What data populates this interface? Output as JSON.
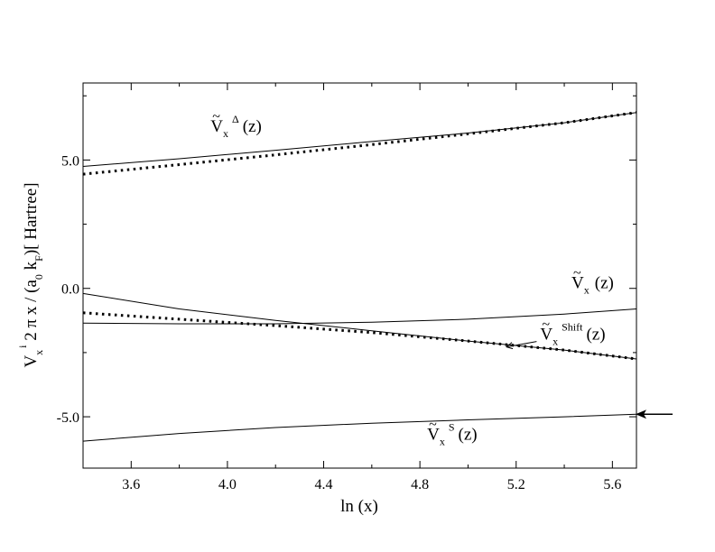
{
  "chart_data": {
    "type": "line",
    "xlabel": "ln (x)",
    "ylabel_parts": {
      "V": "V",
      "sub_x": "x",
      "sup_i": "i",
      "mid": "2 π x / (a",
      "sub_0": "0",
      "k": " k",
      "sub_F": "F",
      "tail": ")[ Hartree]"
    },
    "xlim": [
      3.4,
      5.7
    ],
    "ylim": [
      -7.0,
      8.0
    ],
    "xticks": [
      3.6,
      4.0,
      4.4,
      4.8,
      5.2,
      5.6
    ],
    "xtick_labels": [
      "3.6",
      "4.0",
      "4.4",
      "4.8",
      "5.2",
      "5.6"
    ],
    "yticks": [
      -5.0,
      0.0,
      5.0
    ],
    "ytick_labels": [
      "-5.0",
      "0.0",
      "5.0"
    ],
    "grid": false,
    "series": [
      {
        "id": "delta_solid",
        "style": "solid",
        "x": [
          3.4,
          3.8,
          4.2,
          4.6,
          5.0,
          5.4,
          5.7
        ],
        "y": [
          4.75,
          5.05,
          5.38,
          5.72,
          6.05,
          6.45,
          6.85
        ]
      },
      {
        "id": "delta_dotted",
        "style": "dotted",
        "x": [
          3.4,
          3.8,
          4.2,
          4.6,
          5.0,
          5.4,
          5.7
        ],
        "y": [
          4.45,
          4.82,
          5.2,
          5.6,
          6.02,
          6.45,
          6.85
        ]
      },
      {
        "id": "vx_total",
        "style": "solid",
        "x": [
          3.4,
          3.8,
          4.2,
          4.6,
          5.0,
          5.4,
          5.7
        ],
        "y": [
          -1.35,
          -1.38,
          -1.38,
          -1.32,
          -1.2,
          -1.0,
          -0.8
        ]
      },
      {
        "id": "vx_shift_solid",
        "style": "solid",
        "x": [
          3.4,
          3.8,
          4.2,
          4.6,
          5.0,
          5.4,
          5.7
        ],
        "y": [
          -0.2,
          -0.8,
          -1.25,
          -1.65,
          -2.05,
          -2.4,
          -2.75
        ]
      },
      {
        "id": "vx_shift_dotted",
        "style": "dotted",
        "x": [
          3.4,
          3.8,
          4.2,
          4.6,
          5.0,
          5.4,
          5.7
        ],
        "y": [
          -0.95,
          -1.2,
          -1.45,
          -1.72,
          -2.05,
          -2.4,
          -2.75
        ]
      },
      {
        "id": "vx_s",
        "style": "solid",
        "x": [
          3.4,
          3.8,
          4.2,
          4.6,
          5.0,
          5.4,
          5.7
        ],
        "y": [
          -5.95,
          -5.65,
          -5.42,
          -5.25,
          -5.12,
          -5.0,
          -4.9
        ]
      }
    ],
    "annotations": [
      {
        "id": "ann-delta",
        "tilde": "~",
        "base": "V",
        "sub": "x",
        "sup": "Δ",
        "tail": "(z)",
        "x": 3.93,
        "y": 6.1,
        "anchor": "start"
      },
      {
        "id": "ann-vx",
        "tilde": "~",
        "base": "V",
        "sub": "x",
        "sup": "",
        "tail": "(z)",
        "x": 5.43,
        "y": 0.0,
        "anchor": "start"
      },
      {
        "id": "ann-shift",
        "tilde": "~",
        "base": "V",
        "sub": "x",
        "sup": "Shift",
        "tail": "(z)",
        "x": 5.3,
        "y": -2.0,
        "anchor": "start"
      },
      {
        "id": "ann-s",
        "tilde": "~",
        "base": "V",
        "sub": "x",
        "sup": "S",
        "tail": "(z)",
        "x": 4.83,
        "y": -5.9,
        "anchor": "start"
      }
    ],
    "arrow_marker": {
      "y": -4.9
    }
  }
}
